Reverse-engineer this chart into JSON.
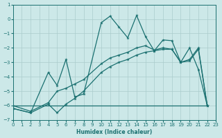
{
  "xlabel": "Humidex (Indice chaleur)",
  "bg_color": "#cce8e8",
  "grid_color": "#aacccc",
  "line_color": "#1a7070",
  "xlim": [
    0,
    23
  ],
  "ylim": [
    -7,
    1
  ],
  "yticks": [
    1,
    0,
    -1,
    -2,
    -3,
    -4,
    -5,
    -6,
    -7
  ],
  "xticks": [
    0,
    1,
    2,
    3,
    4,
    5,
    6,
    7,
    8,
    9,
    10,
    11,
    12,
    13,
    14,
    15,
    16,
    17,
    18,
    19,
    20,
    21,
    22,
    23
  ],
  "line1_x": [
    0,
    2,
    4,
    5,
    6,
    7,
    8,
    10,
    11,
    12,
    13,
    14,
    15,
    16,
    17,
    18,
    19,
    20,
    21,
    22
  ],
  "line1_y": [
    -6.2,
    -6.5,
    -3.7,
    -4.6,
    -2.8,
    -5.4,
    -5.2,
    -0.25,
    0.2,
    -0.55,
    -1.3,
    0.25,
    -1.2,
    -2.2,
    -1.45,
    -1.5,
    -3.0,
    -2.0,
    -3.5,
    -6.0
  ],
  "line2_x": [
    0,
    2,
    4,
    5,
    6,
    7,
    8,
    10,
    11,
    12,
    13,
    14,
    15,
    16,
    17,
    18,
    19,
    20,
    21,
    22
  ],
  "line2_y": [
    -6.0,
    -6.4,
    -5.8,
    -5.0,
    -4.8,
    -4.5,
    -4.2,
    -3.1,
    -2.7,
    -2.5,
    -2.3,
    -2.0,
    -1.85,
    -2.15,
    -2.0,
    -2.1,
    -3.0,
    -2.8,
    -2.0,
    -6.0
  ],
  "line3_x": [
    0,
    2,
    4,
    5,
    6,
    7,
    8,
    10,
    11,
    12,
    13,
    14,
    15,
    16,
    17,
    18,
    19,
    20,
    21,
    22
  ],
  "line3_y": [
    -6.2,
    -6.5,
    -5.9,
    -6.5,
    -5.9,
    -5.5,
    -5.0,
    -3.7,
    -3.3,
    -3.0,
    -2.8,
    -2.5,
    -2.3,
    -2.2,
    -2.1,
    -2.1,
    -3.0,
    -2.9,
    -2.1,
    -6.0
  ],
  "line4_x": [
    0,
    4,
    22
  ],
  "line4_y": [
    -6.0,
    -6.0,
    -6.0
  ]
}
